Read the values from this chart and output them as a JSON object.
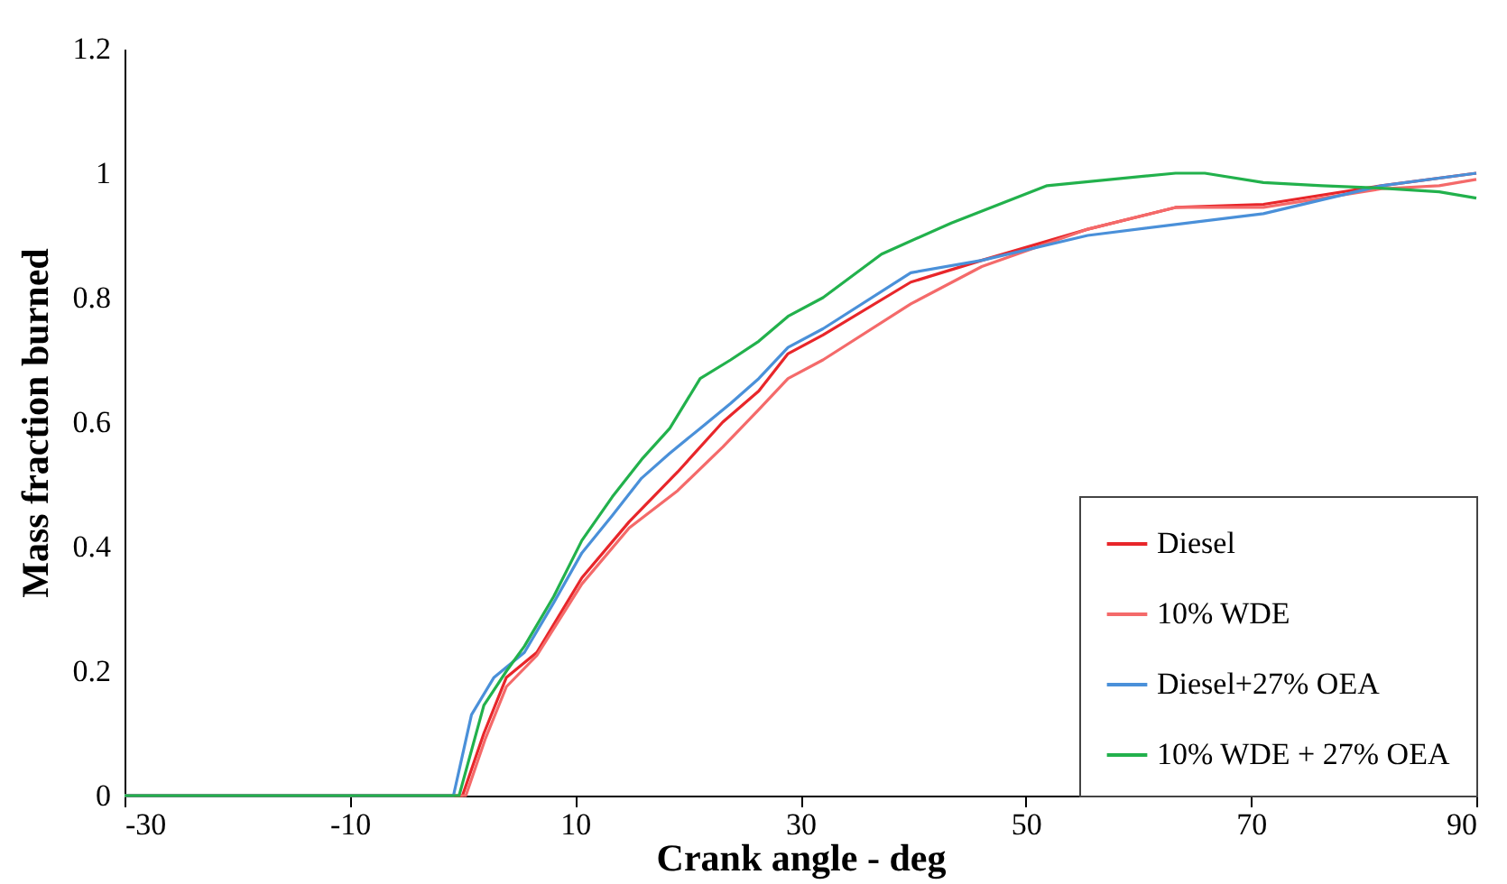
{
  "chart_data": {
    "type": "line",
    "xlabel": "Crank angle - deg",
    "ylabel": "Mass fraction burned",
    "xlim": [
      -30,
      90
    ],
    "ylim": [
      0,
      1.2
    ],
    "xticks": [
      -30,
      -10,
      10,
      30,
      50,
      70,
      90
    ],
    "yticks": [
      0,
      0.2,
      0.4,
      0.6,
      0.8,
      1,
      1.2
    ],
    "grid": false,
    "legend": "bottom right",
    "marker": "none",
    "line_style": "solid",
    "series": [
      {
        "name": "Diesel",
        "color": "#e8262a",
        "x": [
          -30,
          0,
          1.9,
          3.9,
          6.6,
          10.6,
          14.8,
          19.1,
          23.1,
          26.3,
          28.9,
          32,
          39.8,
          46.1,
          55.5,
          63.3,
          71.1,
          81.6,
          90
        ],
        "values": [
          0,
          0,
          0.1,
          0.19,
          0.23,
          0.35,
          0.44,
          0.52,
          0.6,
          0.65,
          0.71,
          0.74,
          0.825,
          0.86,
          0.91,
          0.945,
          0.95,
          0.98,
          1.0
        ]
      },
      {
        "name": "10% WDE",
        "color": "#f46a6a",
        "x": [
          -30,
          0.3,
          2.0,
          3.9,
          6.6,
          10.6,
          14.8,
          19.1,
          23.1,
          26.3,
          28.9,
          32,
          39.8,
          46.1,
          55.5,
          63.3,
          71.1,
          81.6,
          86.7,
          90
        ],
        "values": [
          0,
          0,
          0.09,
          0.175,
          0.225,
          0.34,
          0.43,
          0.49,
          0.56,
          0.62,
          0.67,
          0.7,
          0.79,
          0.85,
          0.91,
          0.945,
          0.945,
          0.975,
          0.98,
          0.99
        ]
      },
      {
        "name": "Diesel+27% OEA",
        "color": "#4a90d9",
        "x": [
          -30,
          -0.8,
          0.8,
          2.8,
          5.5,
          8.1,
          10.6,
          13.3,
          15.9,
          18.4,
          21.1,
          23.8,
          26.3,
          28.9,
          32,
          39.8,
          46.1,
          55.5,
          71.1,
          81.6,
          90
        ],
        "values": [
          0,
          0,
          0.13,
          0.19,
          0.23,
          0.31,
          0.39,
          0.45,
          0.51,
          0.55,
          0.59,
          0.63,
          0.67,
          0.72,
          0.75,
          0.84,
          0.86,
          0.9,
          0.935,
          0.98,
          1.0
        ]
      },
      {
        "name": "10% WDE + 27% OEA",
        "color": "#22b14c",
        "x": [
          -30,
          -0.3,
          1.9,
          3.9,
          5.5,
          8.1,
          10.6,
          13.3,
          15.9,
          18.4,
          21.1,
          23.8,
          26.3,
          28.9,
          32,
          37.2,
          43.4,
          51.9,
          63.3,
          65.9,
          71.1,
          76.3,
          81.6,
          86.7,
          90
        ],
        "values": [
          0,
          0,
          0.145,
          0.2,
          0.24,
          0.32,
          0.41,
          0.48,
          0.54,
          0.59,
          0.67,
          0.7,
          0.73,
          0.77,
          0.8,
          0.87,
          0.92,
          0.98,
          1.0,
          1.0,
          0.985,
          0.98,
          0.976,
          0.97,
          0.96
        ]
      }
    ]
  }
}
